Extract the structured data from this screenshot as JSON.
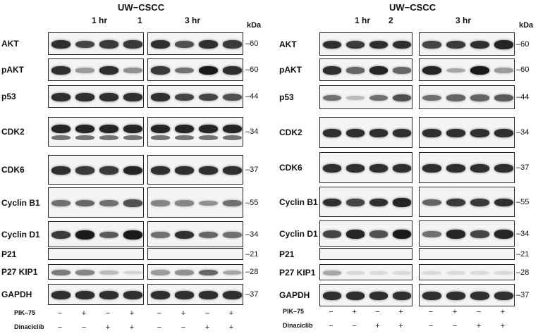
{
  "panels": [
    {
      "title": "UW−CSCC",
      "cell_line_number": "1",
      "time_points": [
        "1 hr",
        "3 hr"
      ],
      "kda_header": "kDa",
      "rows": [
        {
          "label": "AKT",
          "kda": "–60",
          "intensity": [
            0.85,
            0.75,
            0.8,
            0.8,
            0.85,
            0.7,
            0.85,
            0.8
          ],
          "double": false
        },
        {
          "label": "pAKT",
          "kda": "–60",
          "intensity": [
            0.85,
            0.35,
            0.85,
            0.4,
            0.8,
            0.55,
            0.95,
            0.85
          ],
          "double": false
        },
        {
          "label": "p53",
          "kda": "–44",
          "intensity": [
            0.85,
            0.85,
            0.85,
            0.85,
            0.85,
            0.75,
            0.75,
            0.7
          ],
          "double": false
        },
        {
          "label": "CDK2",
          "kda": "–34",
          "intensity": [
            0.9,
            0.9,
            0.9,
            0.9,
            0.9,
            0.9,
            0.9,
            0.9
          ],
          "double": true
        },
        {
          "label": "CDK6",
          "kda": "–37",
          "intensity": [
            0.85,
            0.8,
            0.8,
            0.9,
            0.85,
            0.85,
            0.85,
            0.85
          ],
          "double": false
        },
        {
          "label": "Cyclin B1",
          "kda": "–55",
          "intensity": [
            0.55,
            0.6,
            0.55,
            0.7,
            0.45,
            0.45,
            0.4,
            0.55
          ],
          "double": false
        },
        {
          "label": "Cyclin D1",
          "kda": "–34",
          "intensity": [
            0.8,
            0.95,
            0.65,
            0.95,
            0.55,
            0.85,
            0.6,
            0.55
          ],
          "double": false
        },
        {
          "label": "P21",
          "kda": "–21",
          "intensity": [
            0,
            0,
            0,
            0,
            0,
            0,
            0,
            0
          ],
          "double": false
        },
        {
          "label": "P27 KIP1",
          "kda": "–28",
          "intensity": [
            0.5,
            0.45,
            0.2,
            0.1,
            0.35,
            0.4,
            0.6,
            0.3
          ],
          "double": false
        },
        {
          "label": "GAPDH",
          "kda": "–37",
          "intensity": [
            0.85,
            0.85,
            0.85,
            0.85,
            0.85,
            0.85,
            0.85,
            0.85
          ],
          "double": false
        }
      ],
      "treatments": [
        {
          "name": "PIK–75",
          "signs": [
            "−",
            "+",
            "−",
            "+",
            "−",
            "+",
            "−",
            "+"
          ]
        },
        {
          "name": "Dinaciclib",
          "signs": [
            "−",
            "−",
            "+",
            "+",
            "−",
            "−",
            "+",
            "+"
          ]
        }
      ]
    },
    {
      "title": "UW−CSCC",
      "cell_line_number": "2",
      "time_points": [
        "1 hr",
        "3 hr"
      ],
      "kda_header": "kDa",
      "rows": [
        {
          "label": "AKT",
          "kda": "–60",
          "intensity": [
            0.85,
            0.8,
            0.85,
            0.85,
            0.75,
            0.8,
            0.85,
            0.9
          ],
          "double": false
        },
        {
          "label": "pAKT",
          "kda": "–60",
          "intensity": [
            0.85,
            0.6,
            0.9,
            0.6,
            0.9,
            0.3,
            0.95,
            0.35
          ],
          "double": false
        },
        {
          "label": "p53",
          "kda": "–44",
          "intensity": [
            0.55,
            0.2,
            0.55,
            0.7,
            0.55,
            0.6,
            0.6,
            0.65
          ],
          "double": false
        },
        {
          "label": "CDK2",
          "kda": "–34",
          "intensity": [
            0.85,
            0.85,
            0.85,
            0.85,
            0.85,
            0.85,
            0.85,
            0.85
          ],
          "double": false
        },
        {
          "label": "CDK6",
          "kda": "–37",
          "intensity": [
            0.85,
            0.85,
            0.85,
            0.85,
            0.85,
            0.85,
            0.85,
            0.85
          ],
          "double": false
        },
        {
          "label": "Cyclin B1",
          "kda": "–55",
          "intensity": [
            0.85,
            0.75,
            0.85,
            0.9,
            0.6,
            0.8,
            0.8,
            0.85
          ],
          "double": false
        },
        {
          "label": "Cyclin D1",
          "kda": "–34",
          "intensity": [
            0.75,
            0.9,
            0.7,
            0.95,
            0.55,
            0.9,
            0.75,
            0.9
          ],
          "double": false
        },
        {
          "label": "P21",
          "kda": "–21",
          "intensity": [
            0,
            0,
            0,
            0,
            0,
            0,
            0,
            0
          ],
          "double": false
        },
        {
          "label": "P27 KIP1",
          "kda": "–28",
          "intensity": [
            0.3,
            0.05,
            0.05,
            0.05,
            0.05,
            0.05,
            0.05,
            0.05
          ],
          "double": false
        },
        {
          "label": "GAPDH",
          "kda": "–37",
          "intensity": [
            0.85,
            0.85,
            0.85,
            0.85,
            0.85,
            0.85,
            0.85,
            0.85
          ],
          "double": false
        }
      ],
      "treatments": [
        {
          "name": "PIK–75",
          "signs": [
            "−",
            "+",
            "−",
            "+",
            "−",
            "+",
            "−",
            "+"
          ]
        },
        {
          "name": "Dinaciclib",
          "signs": [
            "−",
            "−",
            "+",
            "+",
            "−",
            "−",
            "+",
            "+"
          ]
        }
      ]
    }
  ]
}
